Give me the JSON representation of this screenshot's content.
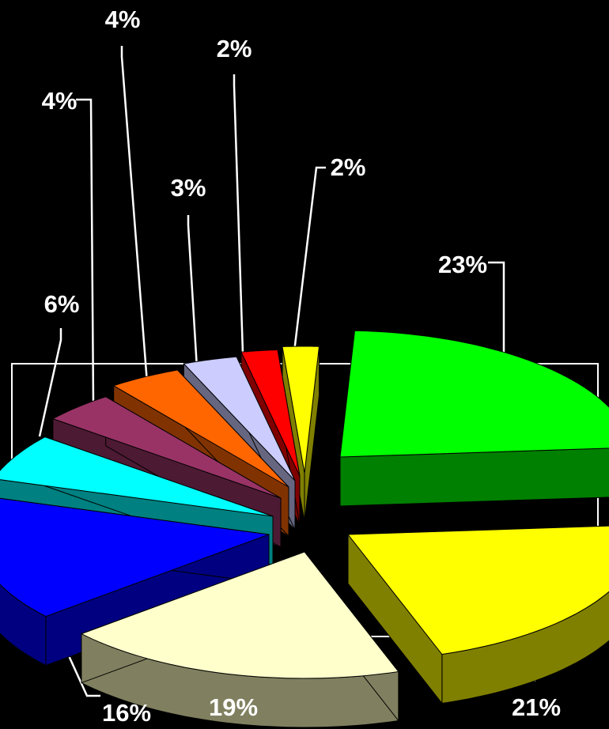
{
  "chart_data": {
    "type": "pie",
    "style": "3d-exploded",
    "slices": [
      {
        "value": 23,
        "label": "23%",
        "top_color": "#00ff00",
        "side_color": "#008000"
      },
      {
        "value": 21,
        "label": "21%",
        "top_color": "#ffff00",
        "side_color": "#808000"
      },
      {
        "value": 19,
        "label": "19%",
        "top_color": "#ffffcc",
        "side_color": "#808060"
      },
      {
        "value": 16,
        "label": "16%",
        "top_color": "#0000ff",
        "side_color": "#000080"
      },
      {
        "value": 6,
        "label": "6%",
        "top_color": "#00ffff",
        "side_color": "#008080"
      },
      {
        "value": 4,
        "label": "4%",
        "top_color": "#993366",
        "side_color": "#4d1a33"
      },
      {
        "value": 4,
        "label": "4%",
        "top_color": "#ff6600",
        "side_color": "#803300"
      },
      {
        "value": 3,
        "label": "3%",
        "top_color": "#ccccff",
        "side_color": "#666680"
      },
      {
        "value": 2,
        "label": "2%",
        "top_color": "#ff0000",
        "side_color": "#800000"
      },
      {
        "value": 2,
        "label": "2%",
        "top_color": "#ffff00",
        "side_color": "#808000"
      }
    ],
    "background": "#000000",
    "frame": true,
    "legend": "none"
  }
}
